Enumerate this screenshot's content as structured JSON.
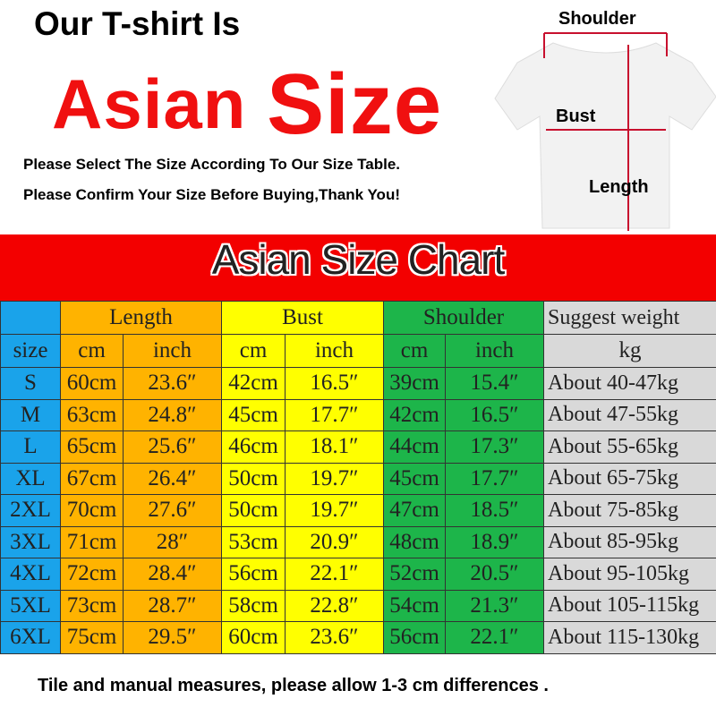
{
  "header": {
    "line1": "Our T-shirt Is",
    "line2a": "Asian",
    "line2b": "Size",
    "note1": "Please Select The Size According To Our Size Table.",
    "note2": "Please Confirm Your Size Before Buying,Thank You!"
  },
  "diagram": {
    "shoulder": "Shoulder",
    "bust": "Bust",
    "length": "Length"
  },
  "chart_title": "Asian Size Chart",
  "colors": {
    "size": "#1aa3ea",
    "length": "#ffb300",
    "bust": "#ffff00",
    "shoulder": "#1db54a",
    "weight": "#d9d9d9",
    "band": "#f30000"
  },
  "table": {
    "groups": [
      "Length",
      "Bust",
      "Shoulder",
      "Suggest weight"
    ],
    "subheaders": [
      "size",
      "cm",
      "inch",
      "cm",
      "inch",
      "cm",
      "inch",
      "kg"
    ],
    "rows": [
      [
        "S",
        "60cm",
        "23.6″",
        "42cm",
        "16.5″",
        "39cm",
        "15.4″",
        "About 40-47kg"
      ],
      [
        "M",
        "63cm",
        "24.8″",
        "45cm",
        "17.7″",
        "42cm",
        "16.5″",
        "About 47-55kg"
      ],
      [
        "L",
        "65cm",
        "25.6″",
        "46cm",
        "18.1″",
        "44cm",
        "17.3″",
        "About 55-65kg"
      ],
      [
        "XL",
        "67cm",
        "26.4″",
        "50cm",
        "19.7″",
        "45cm",
        "17.7″",
        "About 65-75kg"
      ],
      [
        "2XL",
        "70cm",
        "27.6″",
        "50cm",
        "19.7″",
        "47cm",
        "18.5″",
        "About 75-85kg"
      ],
      [
        "3XL",
        "71cm",
        "28″",
        "53cm",
        "20.9″",
        "48cm",
        "18.9″",
        "About 85-95kg"
      ],
      [
        "4XL",
        "72cm",
        "28.4″",
        "56cm",
        "22.1″",
        "52cm",
        "20.5″",
        "About 95-105kg"
      ],
      [
        "5XL",
        "73cm",
        "28.7″",
        "58cm",
        "22.8″",
        "54cm",
        "21.3″",
        "About 105-115kg"
      ],
      [
        "6XL",
        "75cm",
        "29.5″",
        "60cm",
        "23.6″",
        "56cm",
        "22.1″",
        "About 115-130kg"
      ]
    ]
  },
  "footer": "Tile and manual measures, please allow 1-3 cm differences ."
}
